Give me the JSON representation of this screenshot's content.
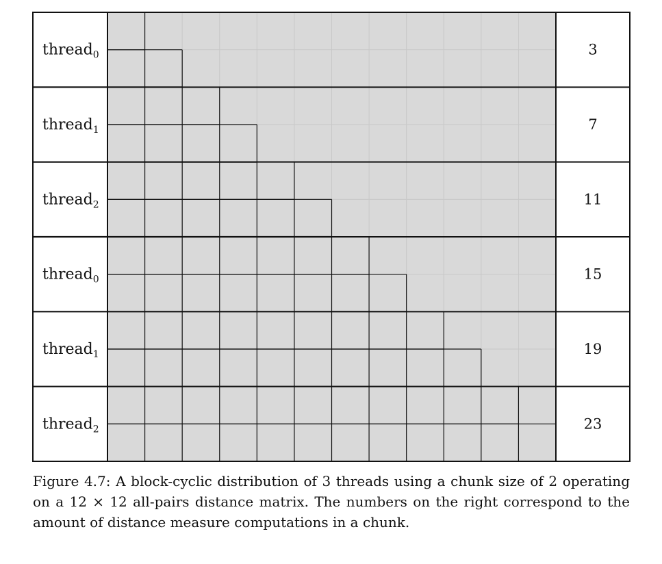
{
  "matrix_size": 12,
  "chunk_size": 2,
  "rows": [
    {
      "thread": "thread",
      "index": "0",
      "count": "3"
    },
    {
      "thread": "thread",
      "index": "1",
      "count": "7"
    },
    {
      "thread": "thread",
      "index": "2",
      "count": "11"
    },
    {
      "thread": "thread",
      "index": "0",
      "count": "15"
    },
    {
      "thread": "thread",
      "index": "1",
      "count": "19"
    },
    {
      "thread": "thread",
      "index": "2",
      "count": "23"
    }
  ],
  "caption": "Figure 4.7: A block-cyclic distribution of 3 threads using a chunk size of 2 operating on a 12 × 12 all-pairs distance matrix.  The numbers on the right correspond to the amount of distance measure computations in a chunk.",
  "colors": {
    "grid_fill": "#d9d9d9",
    "faint_line": "#c8c8c8",
    "line": "#111111"
  }
}
